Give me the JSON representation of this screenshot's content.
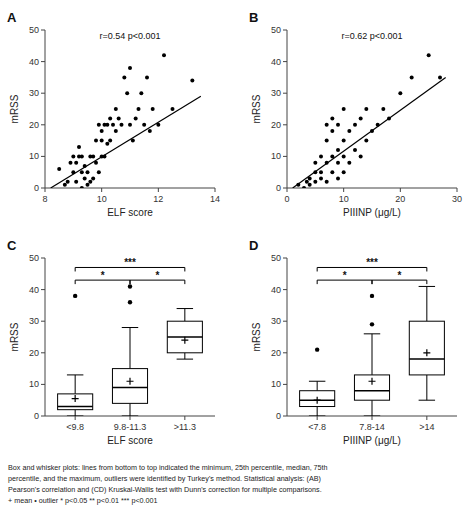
{
  "chart_data": [
    {
      "type": "scatter",
      "title": "A",
      "annotations": [
        "r=0.54 p<0.001"
      ],
      "xlabel": "ELF score",
      "ylabel": "mRSS",
      "xlim": [
        8,
        14
      ],
      "ylim": [
        0,
        50
      ],
      "xticks": [
        8,
        10,
        12,
        14
      ],
      "yticks": [
        0,
        10,
        20,
        30,
        40,
        50
      ],
      "series": [
        {
          "type": "scatter",
          "color": "#000000",
          "x": [
            8.5,
            8.7,
            8.8,
            8.9,
            9.0,
            9.0,
            9.1,
            9.1,
            9.2,
            9.2,
            9.3,
            9.3,
            9.3,
            9.4,
            9.4,
            9.5,
            9.5,
            9.6,
            9.6,
            9.7,
            9.7,
            9.8,
            9.8,
            9.9,
            9.9,
            10.0,
            10.0,
            10.0,
            10.1,
            10.1,
            10.2,
            10.2,
            10.3,
            10.3,
            10.4,
            10.5,
            10.5,
            10.6,
            10.7,
            10.8,
            10.9,
            11.0,
            11.0,
            11.1,
            11.2,
            11.3,
            11.4,
            11.5,
            11.6,
            11.7,
            11.8,
            12.0,
            12.2,
            12.5,
            13.2
          ],
          "values": [
            6,
            1,
            2,
            8,
            10,
            5,
            2,
            8,
            10,
            13,
            0,
            5,
            10,
            3,
            7,
            1,
            5,
            2,
            10,
            3,
            10,
            8,
            15,
            5,
            20,
            10,
            15,
            18,
            10,
            20,
            14,
            20,
            15,
            22,
            20,
            18,
            25,
            22,
            20,
            35,
            30,
            20,
            38,
            15,
            22,
            25,
            30,
            20,
            35,
            18,
            25,
            20,
            42,
            25,
            34
          ]
        },
        {
          "type": "line",
          "color": "#000000",
          "x": [
            8.2,
            13.5
          ],
          "values": [
            0,
            29
          ]
        }
      ]
    },
    {
      "type": "scatter",
      "title": "B",
      "annotations": [
        "r=0.62 p<0.001"
      ],
      "xlabel": "PIIINP (μg/L)",
      "ylabel": "mRSS",
      "xlim": [
        0,
        30
      ],
      "ylim": [
        0,
        50
      ],
      "xticks": [
        0,
        10,
        20,
        30
      ],
      "yticks": [
        0,
        10,
        20,
        30,
        40,
        50
      ],
      "series": [
        {
          "type": "scatter",
          "color": "#000000",
          "x": [
            2,
            3,
            3.5,
            4,
            4,
            5,
            5,
            5,
            6,
            6,
            6,
            7,
            7,
            7,
            7,
            8,
            8,
            8,
            8,
            9,
            9,
            9,
            9,
            10,
            10,
            10,
            10,
            11,
            11,
            12,
            12,
            13,
            13,
            14,
            14,
            15,
            16,
            17,
            18,
            20,
            22,
            25,
            27
          ],
          "values": [
            1,
            0,
            2,
            3,
            1,
            2,
            5,
            8,
            3,
            5,
            10,
            2,
            8,
            15,
            20,
            5,
            10,
            18,
            22,
            3,
            8,
            12,
            20,
            5,
            10,
            15,
            25,
            8,
            18,
            12,
            20,
            10,
            22,
            15,
            25,
            18,
            20,
            25,
            22,
            30,
            35,
            42,
            35
          ]
        },
        {
          "type": "line",
          "color": "#000000",
          "x": [
            1,
            28
          ],
          "values": [
            0,
            35
          ]
        }
      ]
    },
    {
      "type": "box",
      "title": "C",
      "xlabel": "ELF score",
      "ylabel": "mRSS",
      "color": "#000000",
      "ylim": [
        0,
        50
      ],
      "yticks": [
        0,
        10,
        20,
        30,
        40,
        50
      ],
      "categories": [
        "<9.8",
        "9.8-11.3",
        ">11.3"
      ],
      "boxes": [
        {
          "q1": 2,
          "median": 3,
          "q3": 7,
          "whisker_low": 0,
          "whisker_high": 13,
          "mean": 5.5,
          "outliers": [
            38
          ]
        },
        {
          "q1": 4,
          "median": 9,
          "q3": 15,
          "whisker_low": 0,
          "whisker_high": 28,
          "mean": 11,
          "outliers": [
            36,
            41
          ]
        },
        {
          "q1": 20,
          "median": 25,
          "q3": 30,
          "whisker_low": 18,
          "whisker_high": 34,
          "mean": 24,
          "outliers": []
        }
      ],
      "sig_brackets": [
        {
          "x1": 0,
          "x2": 1,
          "y": 43,
          "label": "*"
        },
        {
          "x1": 1,
          "x2": 2,
          "y": 43,
          "label": "*"
        },
        {
          "x1": 0,
          "x2": 2,
          "y": 47,
          "label": "***"
        }
      ]
    },
    {
      "type": "box",
      "title": "D",
      "xlabel": "PIIINP (μg/L)",
      "ylabel": "mRSS",
      "color": "#000000",
      "ylim": [
        0,
        50
      ],
      "yticks": [
        0,
        10,
        20,
        30,
        40,
        50
      ],
      "categories": [
        "<7.8",
        "7.8-14",
        ">14"
      ],
      "boxes": [
        {
          "q1": 3,
          "median": 5,
          "q3": 8,
          "whisker_low": 0,
          "whisker_high": 11,
          "mean": 5,
          "outliers": [
            21
          ]
        },
        {
          "q1": 5,
          "median": 8,
          "q3": 13,
          "whisker_low": 0,
          "whisker_high": 26,
          "mean": 11,
          "outliers": [
            29,
            38
          ]
        },
        {
          "q1": 13,
          "median": 18,
          "q3": 30,
          "whisker_low": 5,
          "whisker_high": 41,
          "mean": 20,
          "outliers": []
        }
      ],
      "sig_brackets": [
        {
          "x1": 0,
          "x2": 1,
          "y": 43,
          "label": "*"
        },
        {
          "x1": 1,
          "x2": 2,
          "y": 43,
          "label": "*"
        },
        {
          "x1": 0,
          "x2": 2,
          "y": 47,
          "label": "***"
        }
      ]
    }
  ],
  "footnote": [
    "Box and whisker plots: lines from bottom to top indicated the minimum, 25th percentile, median, 75th",
    "percentile, and the maximum, outliers were identified by Turkey's method. Statistical analysis: (AB)",
    "Pearson's correlation and (CD) Kruskal-Wallis test with Dunn's correction for multiple comparisons.",
    "+ mean   • outlier   * p<0.05   ** p<0.01   *** p<0.001"
  ]
}
